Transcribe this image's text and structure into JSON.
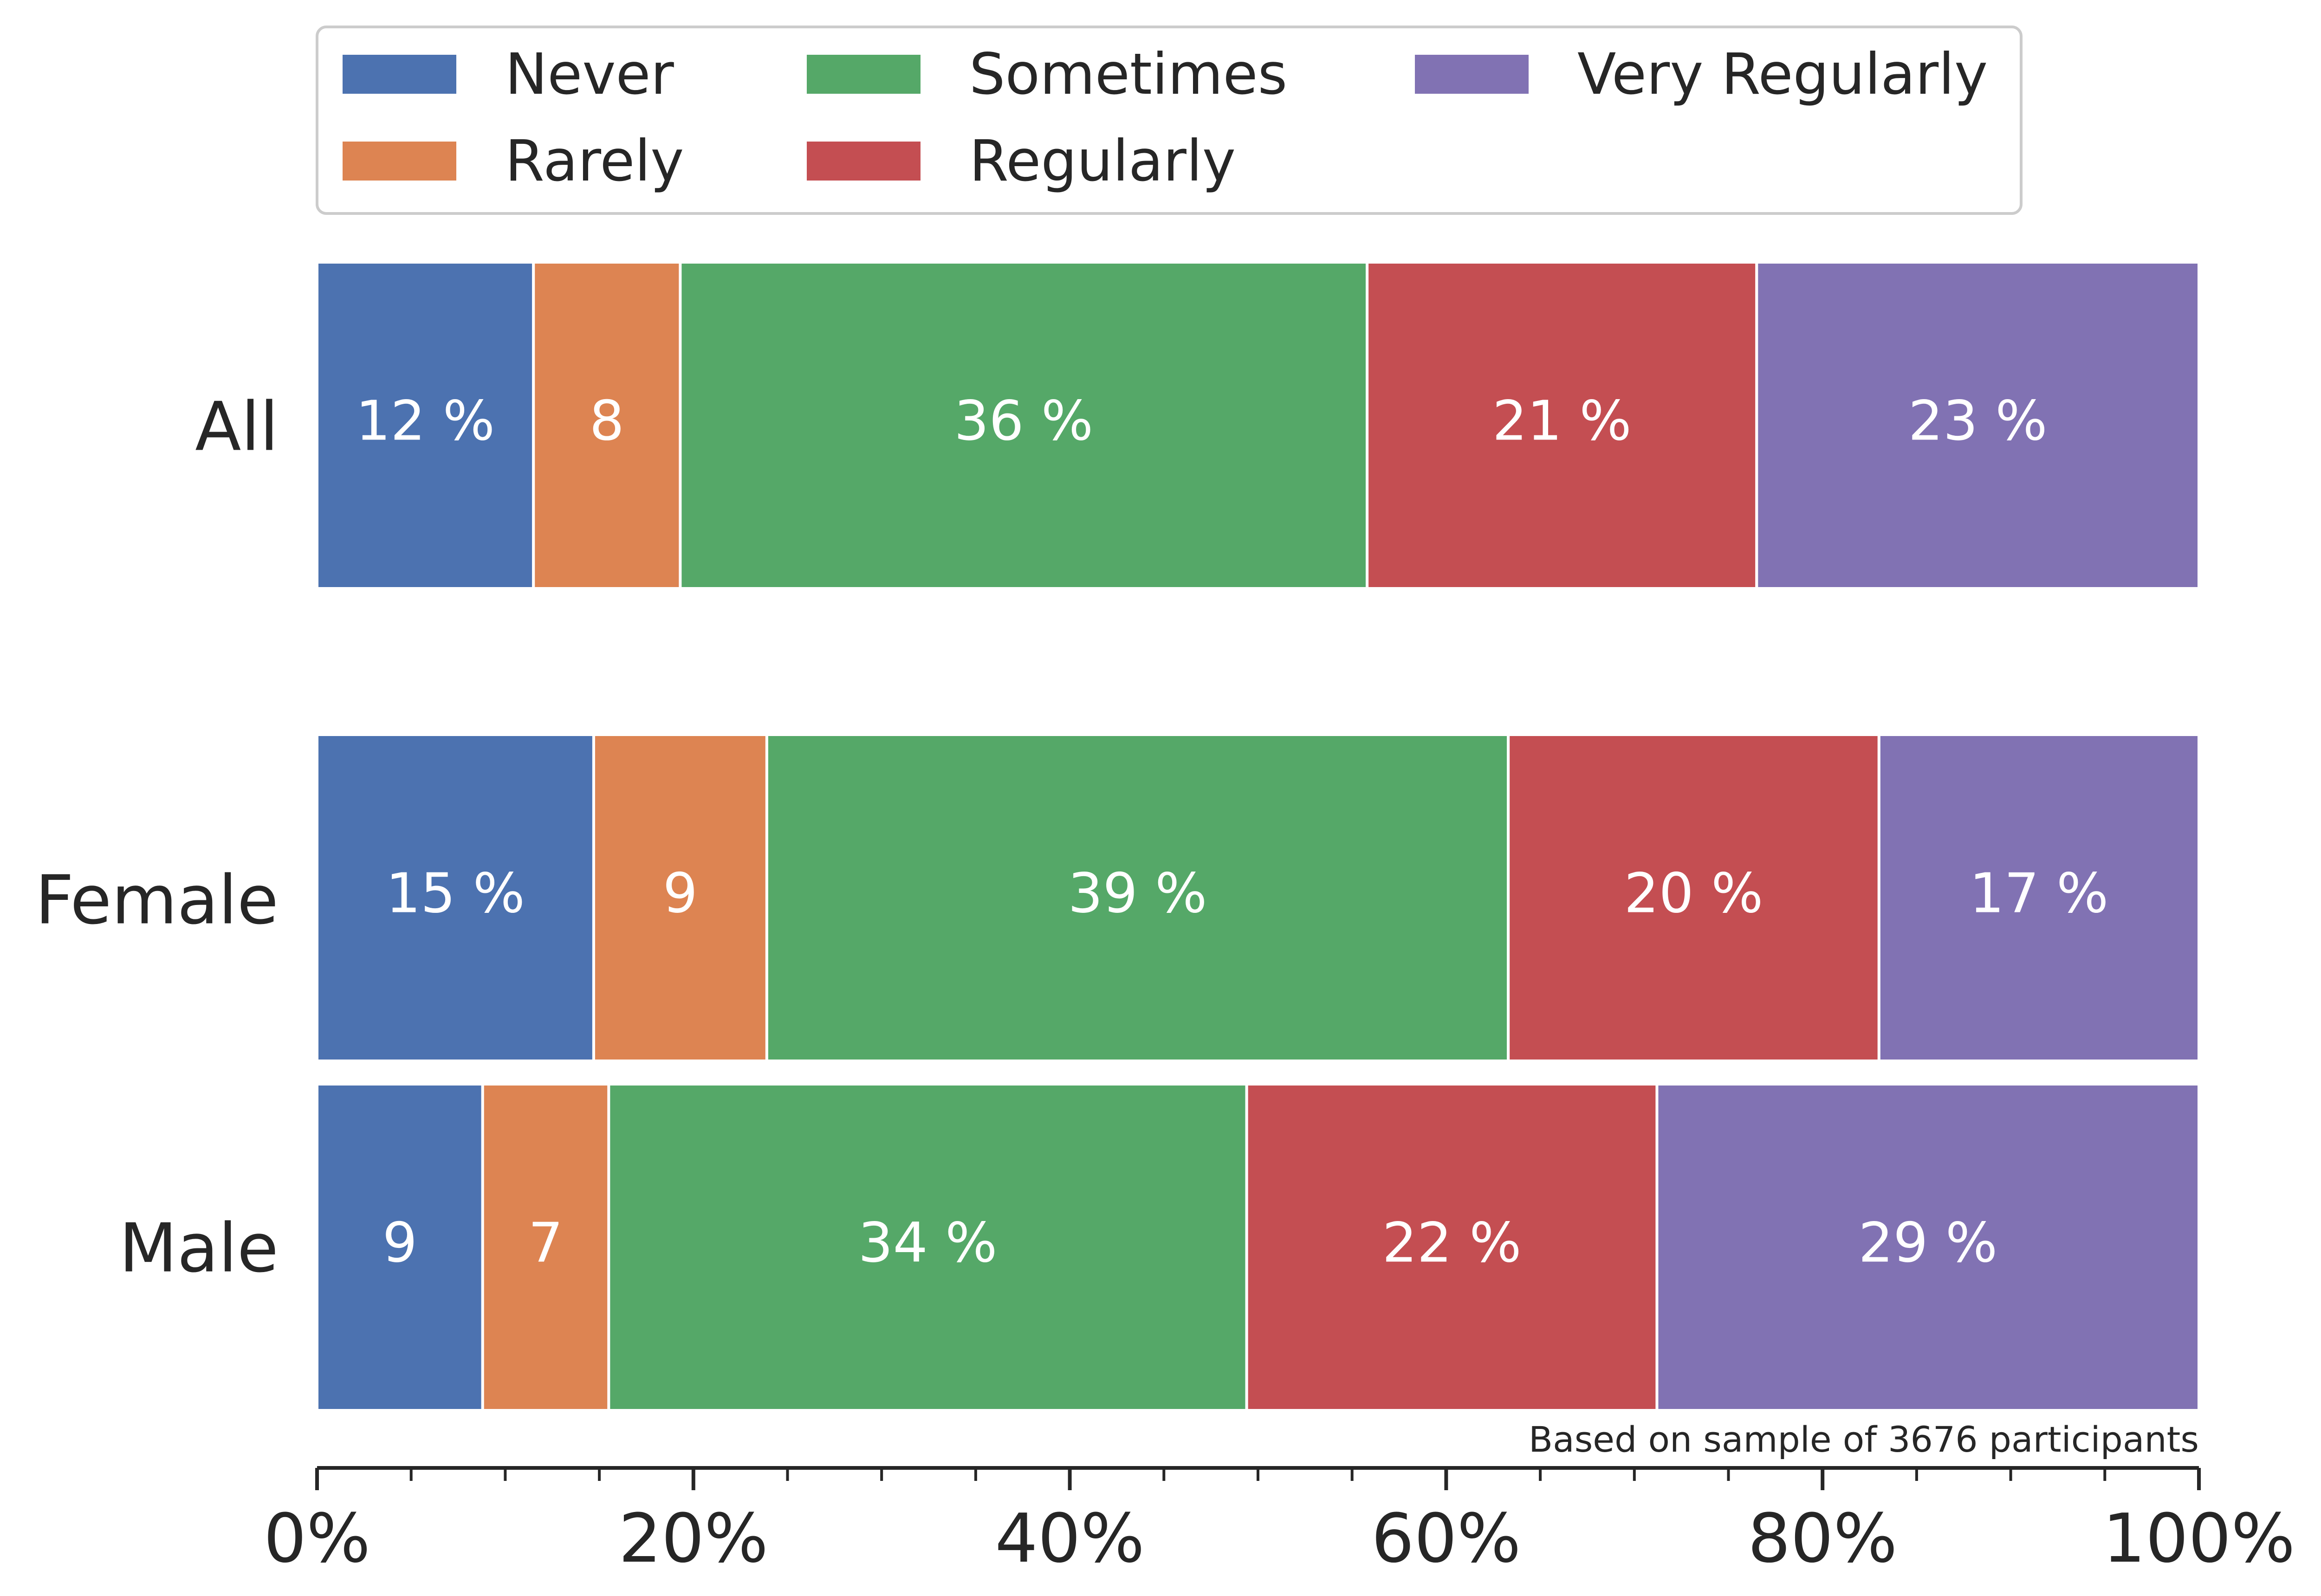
{
  "chart_data": {
    "type": "bar",
    "orientation": "horizontal",
    "stacked": true,
    "categories": [
      "All",
      "Female",
      "Male"
    ],
    "series": [
      {
        "name": "Never",
        "color": "#4c72b0",
        "values": [
          11.5,
          14.7,
          8.8
        ],
        "labels": [
          "12 %",
          "15 %",
          "9"
        ]
      },
      {
        "name": "Rarely",
        "color": "#dd8452",
        "values": [
          7.8,
          9.2,
          6.7
        ],
        "labels": [
          "8",
          "9",
          "7"
        ]
      },
      {
        "name": "Sometimes",
        "color": "#55a868",
        "values": [
          36.5,
          39.4,
          33.9
        ],
        "labels": [
          "36 %",
          "39 %",
          "34 %"
        ]
      },
      {
        "name": "Regularly",
        "color": "#c44e52",
        "values": [
          20.7,
          19.7,
          21.8
        ],
        "labels": [
          "21 %",
          "20 %",
          "22 %"
        ]
      },
      {
        "name": "Very Regularly",
        "color": "#8172b3",
        "values": [
          23.5,
          17.0,
          28.8
        ],
        "labels": [
          "23 %",
          "17 %",
          "29 %"
        ]
      }
    ],
    "xlim": [
      0,
      100
    ],
    "xticks": [
      0,
      20,
      40,
      60,
      80,
      100
    ],
    "xtick_labels": [
      "0%",
      "20%",
      "40%",
      "60%",
      "80%",
      "100%"
    ],
    "minor_xticks_every": 5,
    "legend": {
      "position": "top",
      "columns": 3
    },
    "annotation": "Based on sample of 3676 participants",
    "grid": false
  }
}
